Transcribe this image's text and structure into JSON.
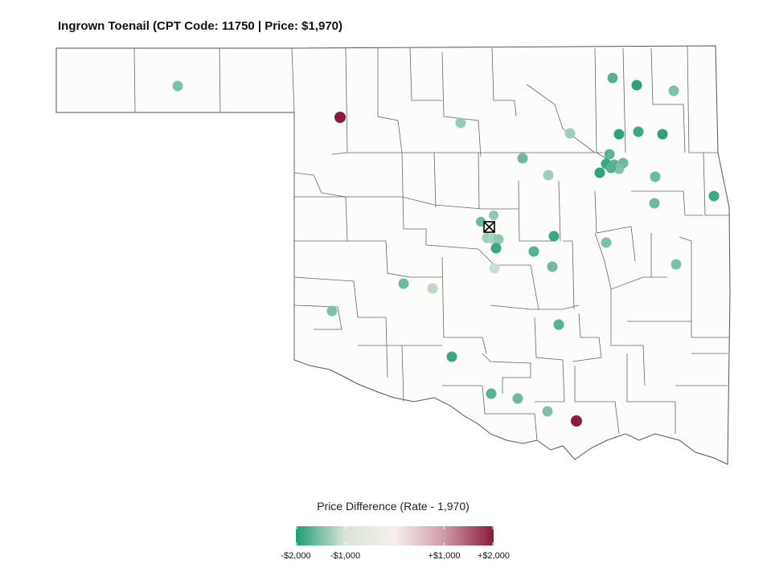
{
  "title": "Ingrown Toenail (CPT Code: 11750 | Price: $1,970)",
  "legend": {
    "title": "Price Difference (Rate - 1,970)",
    "colors": [
      "#1b9e77",
      "#d9e4d6",
      "#f7efec",
      "#cf9ba8",
      "#8b1a3c"
    ],
    "ticks": [
      {
        "label": "-$2,000",
        "value": -2000
      },
      {
        "label": "-$1,000",
        "value": -1000
      },
      {
        "label": "+$1,000",
        "value": 1000
      },
      {
        "label": "+$2,000",
        "value": 2000
      }
    ],
    "range": [
      -2000,
      2000
    ]
  },
  "map": {
    "land_color": "#fcfcfb",
    "border_color": "#555555",
    "reference_marker": "crossed-box-icon"
  }
}
